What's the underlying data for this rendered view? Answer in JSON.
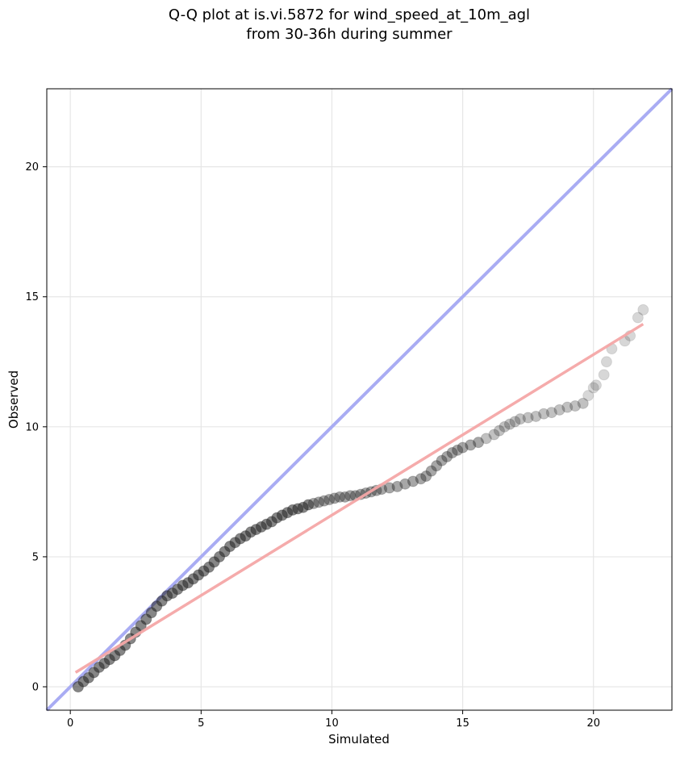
{
  "chart_data": {
    "type": "scatter",
    "title": "Q-Q plot at is.vi.5872 for wind_speed_at_10m_agl",
    "subtitle": "from 30-36h during summer",
    "xlabel": "Simulated",
    "ylabel": "Observed",
    "xlim": [
      -0.9,
      23.0
    ],
    "ylim": [
      -0.9,
      23.0
    ],
    "x_ticks": [
      0,
      5,
      10,
      15,
      20
    ],
    "y_ticks": [
      0,
      5,
      10,
      15,
      20
    ],
    "grid": true,
    "legend": "none",
    "colors": {
      "points": "#222222",
      "identity_line": "#a9acf3",
      "fit_line": "#f4a6a6",
      "grid": "#e6e6e6",
      "axes": "#000000"
    },
    "identity_line": {
      "from": [
        -0.9,
        -0.9
      ],
      "to": [
        23.0,
        23.0
      ]
    },
    "fit_line": {
      "from": [
        0.2,
        0.55
      ],
      "to": [
        21.9,
        13.95
      ]
    },
    "series": [
      {
        "x": [
          0.3,
          0.5,
          0.7,
          0.9,
          1.1,
          1.3,
          1.5,
          1.7,
          1.9,
          2.1,
          2.3,
          2.5,
          2.7,
          2.9,
          3.1,
          3.3,
          3.5,
          3.7,
          3.9,
          4.1,
          4.3,
          4.5,
          4.7,
          4.9,
          5.1,
          5.3,
          5.5,
          5.7,
          5.9,
          6.1,
          6.3,
          6.5,
          6.7,
          6.9,
          7.1,
          7.3,
          7.5,
          7.7,
          7.9,
          8.1,
          8.3,
          8.5,
          8.7,
          8.9,
          9.1,
          9.3,
          9.5,
          9.7,
          9.9,
          10.1,
          10.3,
          10.5,
          10.7,
          10.9,
          11.1,
          11.3,
          11.5,
          11.7,
          11.9,
          12.2,
          12.5,
          12.8,
          13.1,
          13.4,
          13.6,
          13.8,
          14.0,
          14.2,
          14.4,
          14.6,
          14.8,
          15.0,
          15.3,
          15.6,
          15.9,
          16.2,
          16.4,
          16.6,
          16.8,
          17.0,
          17.2,
          17.5,
          17.8,
          18.1,
          18.4,
          18.7,
          19.0,
          19.3,
          19.6,
          19.8,
          20.0,
          20.1,
          20.4,
          20.5,
          20.7,
          21.2,
          21.4,
          21.7,
          21.9
        ],
        "y": [
          0.0,
          0.2,
          0.35,
          0.55,
          0.75,
          0.9,
          1.05,
          1.2,
          1.4,
          1.6,
          1.85,
          2.1,
          2.35,
          2.6,
          2.85,
          3.1,
          3.3,
          3.5,
          3.6,
          3.75,
          3.9,
          4.0,
          4.15,
          4.3,
          4.45,
          4.6,
          4.8,
          5.0,
          5.2,
          5.4,
          5.55,
          5.7,
          5.8,
          5.95,
          6.05,
          6.15,
          6.25,
          6.35,
          6.5,
          6.6,
          6.7,
          6.8,
          6.85,
          6.9,
          7.0,
          7.05,
          7.1,
          7.15,
          7.2,
          7.25,
          7.3,
          7.3,
          7.35,
          7.35,
          7.4,
          7.45,
          7.5,
          7.55,
          7.6,
          7.65,
          7.7,
          7.8,
          7.9,
          8.0,
          8.1,
          8.3,
          8.5,
          8.7,
          8.85,
          9.0,
          9.1,
          9.2,
          9.3,
          9.4,
          9.55,
          9.7,
          9.85,
          10.0,
          10.1,
          10.2,
          10.3,
          10.35,
          10.4,
          10.5,
          10.55,
          10.65,
          10.75,
          10.8,
          10.9,
          11.2,
          11.5,
          11.6,
          12.0,
          12.5,
          13.0,
          13.3,
          13.5,
          14.2,
          14.5
        ]
      }
    ]
  }
}
